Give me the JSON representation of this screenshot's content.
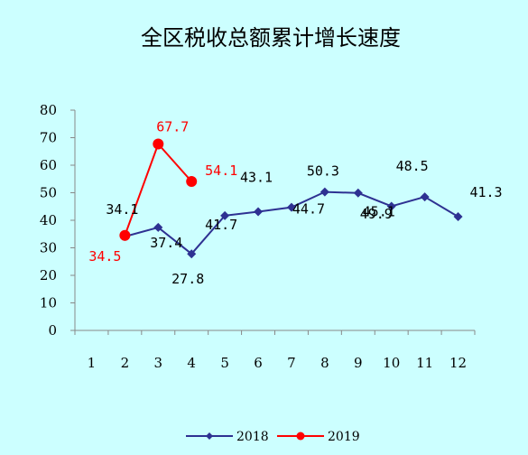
{
  "chart_data": {
    "type": "line",
    "title": "全区税收总额累计增长速度",
    "x": [
      1,
      2,
      3,
      4,
      5,
      6,
      7,
      8,
      9,
      10,
      11,
      12
    ],
    "ylim": [
      0,
      80
    ],
    "yticks": [
      0,
      10,
      20,
      30,
      40,
      50,
      60,
      70,
      80
    ],
    "grid": false,
    "legend_position": "bottom",
    "series": [
      {
        "name": "2018",
        "color": "#2e3192",
        "marker": "diamond",
        "points": [
          [
            2,
            34.1
          ],
          [
            3,
            37.4
          ],
          [
            4,
            27.8
          ],
          [
            5,
            41.7
          ],
          [
            6,
            43.1
          ],
          [
            7,
            44.7
          ],
          [
            8,
            50.3
          ],
          [
            9,
            49.9
          ],
          [
            10,
            45.1
          ],
          [
            11,
            48.5
          ],
          [
            12,
            41.3
          ]
        ],
        "labels": [
          "34.1",
          "37.4",
          "27.8",
          "41.7",
          "43.1",
          "44.7",
          "50.3",
          "49.9",
          "45.1",
          "48.5",
          "41.3"
        ]
      },
      {
        "name": "2019",
        "color": "#ff0000",
        "marker": "circle",
        "points": [
          [
            2,
            34.5
          ],
          [
            3,
            67.7
          ],
          [
            4,
            54.1
          ]
        ],
        "labels": [
          "34.5",
          "67.7",
          "54.1"
        ]
      }
    ]
  }
}
